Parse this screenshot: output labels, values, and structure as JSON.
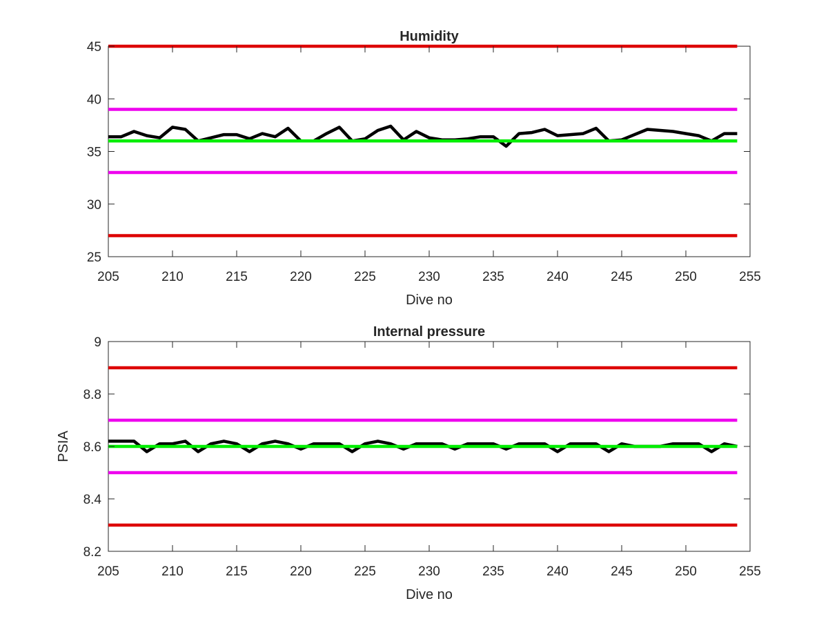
{
  "chart_data": [
    {
      "type": "line",
      "title": "Humidity",
      "xlabel": "Dive no",
      "ylabel": "",
      "xlim": [
        205,
        255
      ],
      "ylim": [
        25,
        45
      ],
      "xticks": [
        205,
        210,
        215,
        220,
        225,
        230,
        235,
        240,
        245,
        250,
        255
      ],
      "yticks": [
        25,
        30,
        35,
        40,
        45
      ],
      "grid": false,
      "series": [
        {
          "color": "#000000",
          "x": [
            205,
            206,
            207,
            208,
            209,
            210,
            211,
            212,
            213,
            214,
            215,
            216,
            217,
            218,
            219,
            220,
            221,
            222,
            223,
            224,
            225,
            226,
            227,
            228,
            229,
            230,
            231,
            232,
            233,
            234,
            235,
            236,
            237,
            238,
            239,
            240,
            241,
            242,
            243,
            244,
            245,
            246,
            247,
            248,
            249,
            250,
            251,
            252,
            253,
            254
          ],
          "y": [
            36.4,
            36.4,
            36.9,
            36.5,
            36.3,
            37.3,
            37.1,
            36.0,
            36.3,
            36.6,
            36.6,
            36.2,
            36.7,
            36.4,
            37.2,
            36.0,
            36.0,
            36.7,
            37.3,
            36.0,
            36.2,
            37.0,
            37.4,
            36.1,
            36.9,
            36.3,
            36.1,
            36.1,
            36.2,
            36.4,
            36.4,
            35.5,
            36.7,
            36.8,
            37.1,
            36.5,
            36.6,
            36.7,
            37.2,
            36.0,
            36.1,
            36.6,
            37.1,
            37.0,
            36.9,
            36.7,
            36.5,
            36.0,
            36.7,
            36.7
          ]
        },
        {
          "color": "#00ee00",
          "x": [
            205,
            254
          ],
          "y": [
            36,
            36
          ]
        },
        {
          "color": "#ee00ee",
          "x": [
            205,
            254
          ],
          "y": [
            39,
            39
          ]
        },
        {
          "color": "#ee00ee",
          "x": [
            205,
            254
          ],
          "y": [
            33,
            33
          ]
        },
        {
          "color": "#dd0000",
          "x": [
            205,
            254
          ],
          "y": [
            45,
            45
          ]
        },
        {
          "color": "#dd0000",
          "x": [
            205,
            254
          ],
          "y": [
            27,
            27
          ]
        }
      ]
    },
    {
      "type": "line",
      "title": "Internal pressure",
      "xlabel": "Dive no",
      "ylabel": "PSIA",
      "xlim": [
        205,
        255
      ],
      "ylim": [
        8.2,
        9
      ],
      "xticks": [
        205,
        210,
        215,
        220,
        225,
        230,
        235,
        240,
        245,
        250,
        255
      ],
      "yticks": [
        8.2,
        8.4,
        8.6,
        8.8,
        9
      ],
      "grid": false,
      "series": [
        {
          "color": "#000000",
          "x": [
            205,
            206,
            207,
            208,
            209,
            210,
            211,
            212,
            213,
            214,
            215,
            216,
            217,
            218,
            219,
            220,
            221,
            222,
            223,
            224,
            225,
            226,
            227,
            228,
            229,
            230,
            231,
            232,
            233,
            234,
            235,
            236,
            237,
            238,
            239,
            240,
            241,
            242,
            243,
            244,
            245,
            246,
            247,
            248,
            249,
            250,
            251,
            252,
            253,
            254
          ],
          "y": [
            8.62,
            8.62,
            8.62,
            8.58,
            8.61,
            8.61,
            8.62,
            8.58,
            8.61,
            8.62,
            8.61,
            8.58,
            8.61,
            8.62,
            8.61,
            8.59,
            8.61,
            8.61,
            8.61,
            8.58,
            8.61,
            8.62,
            8.61,
            8.59,
            8.61,
            8.61,
            8.61,
            8.59,
            8.61,
            8.61,
            8.61,
            8.59,
            8.61,
            8.61,
            8.61,
            8.58,
            8.61,
            8.61,
            8.61,
            8.58,
            8.61,
            8.6,
            8.6,
            8.6,
            8.61,
            8.61,
            8.61,
            8.58,
            8.61,
            8.6
          ]
        },
        {
          "color": "#00ee00",
          "x": [
            205,
            254
          ],
          "y": [
            8.6,
            8.6
          ]
        },
        {
          "color": "#ee00ee",
          "x": [
            205,
            254
          ],
          "y": [
            8.7,
            8.7
          ]
        },
        {
          "color": "#ee00ee",
          "x": [
            205,
            254
          ],
          "y": [
            8.5,
            8.5
          ]
        },
        {
          "color": "#dd0000",
          "x": [
            205,
            254
          ],
          "y": [
            8.9,
            8.9
          ]
        },
        {
          "color": "#dd0000",
          "x": [
            205,
            254
          ],
          "y": [
            8.3,
            8.3
          ]
        }
      ]
    }
  ]
}
